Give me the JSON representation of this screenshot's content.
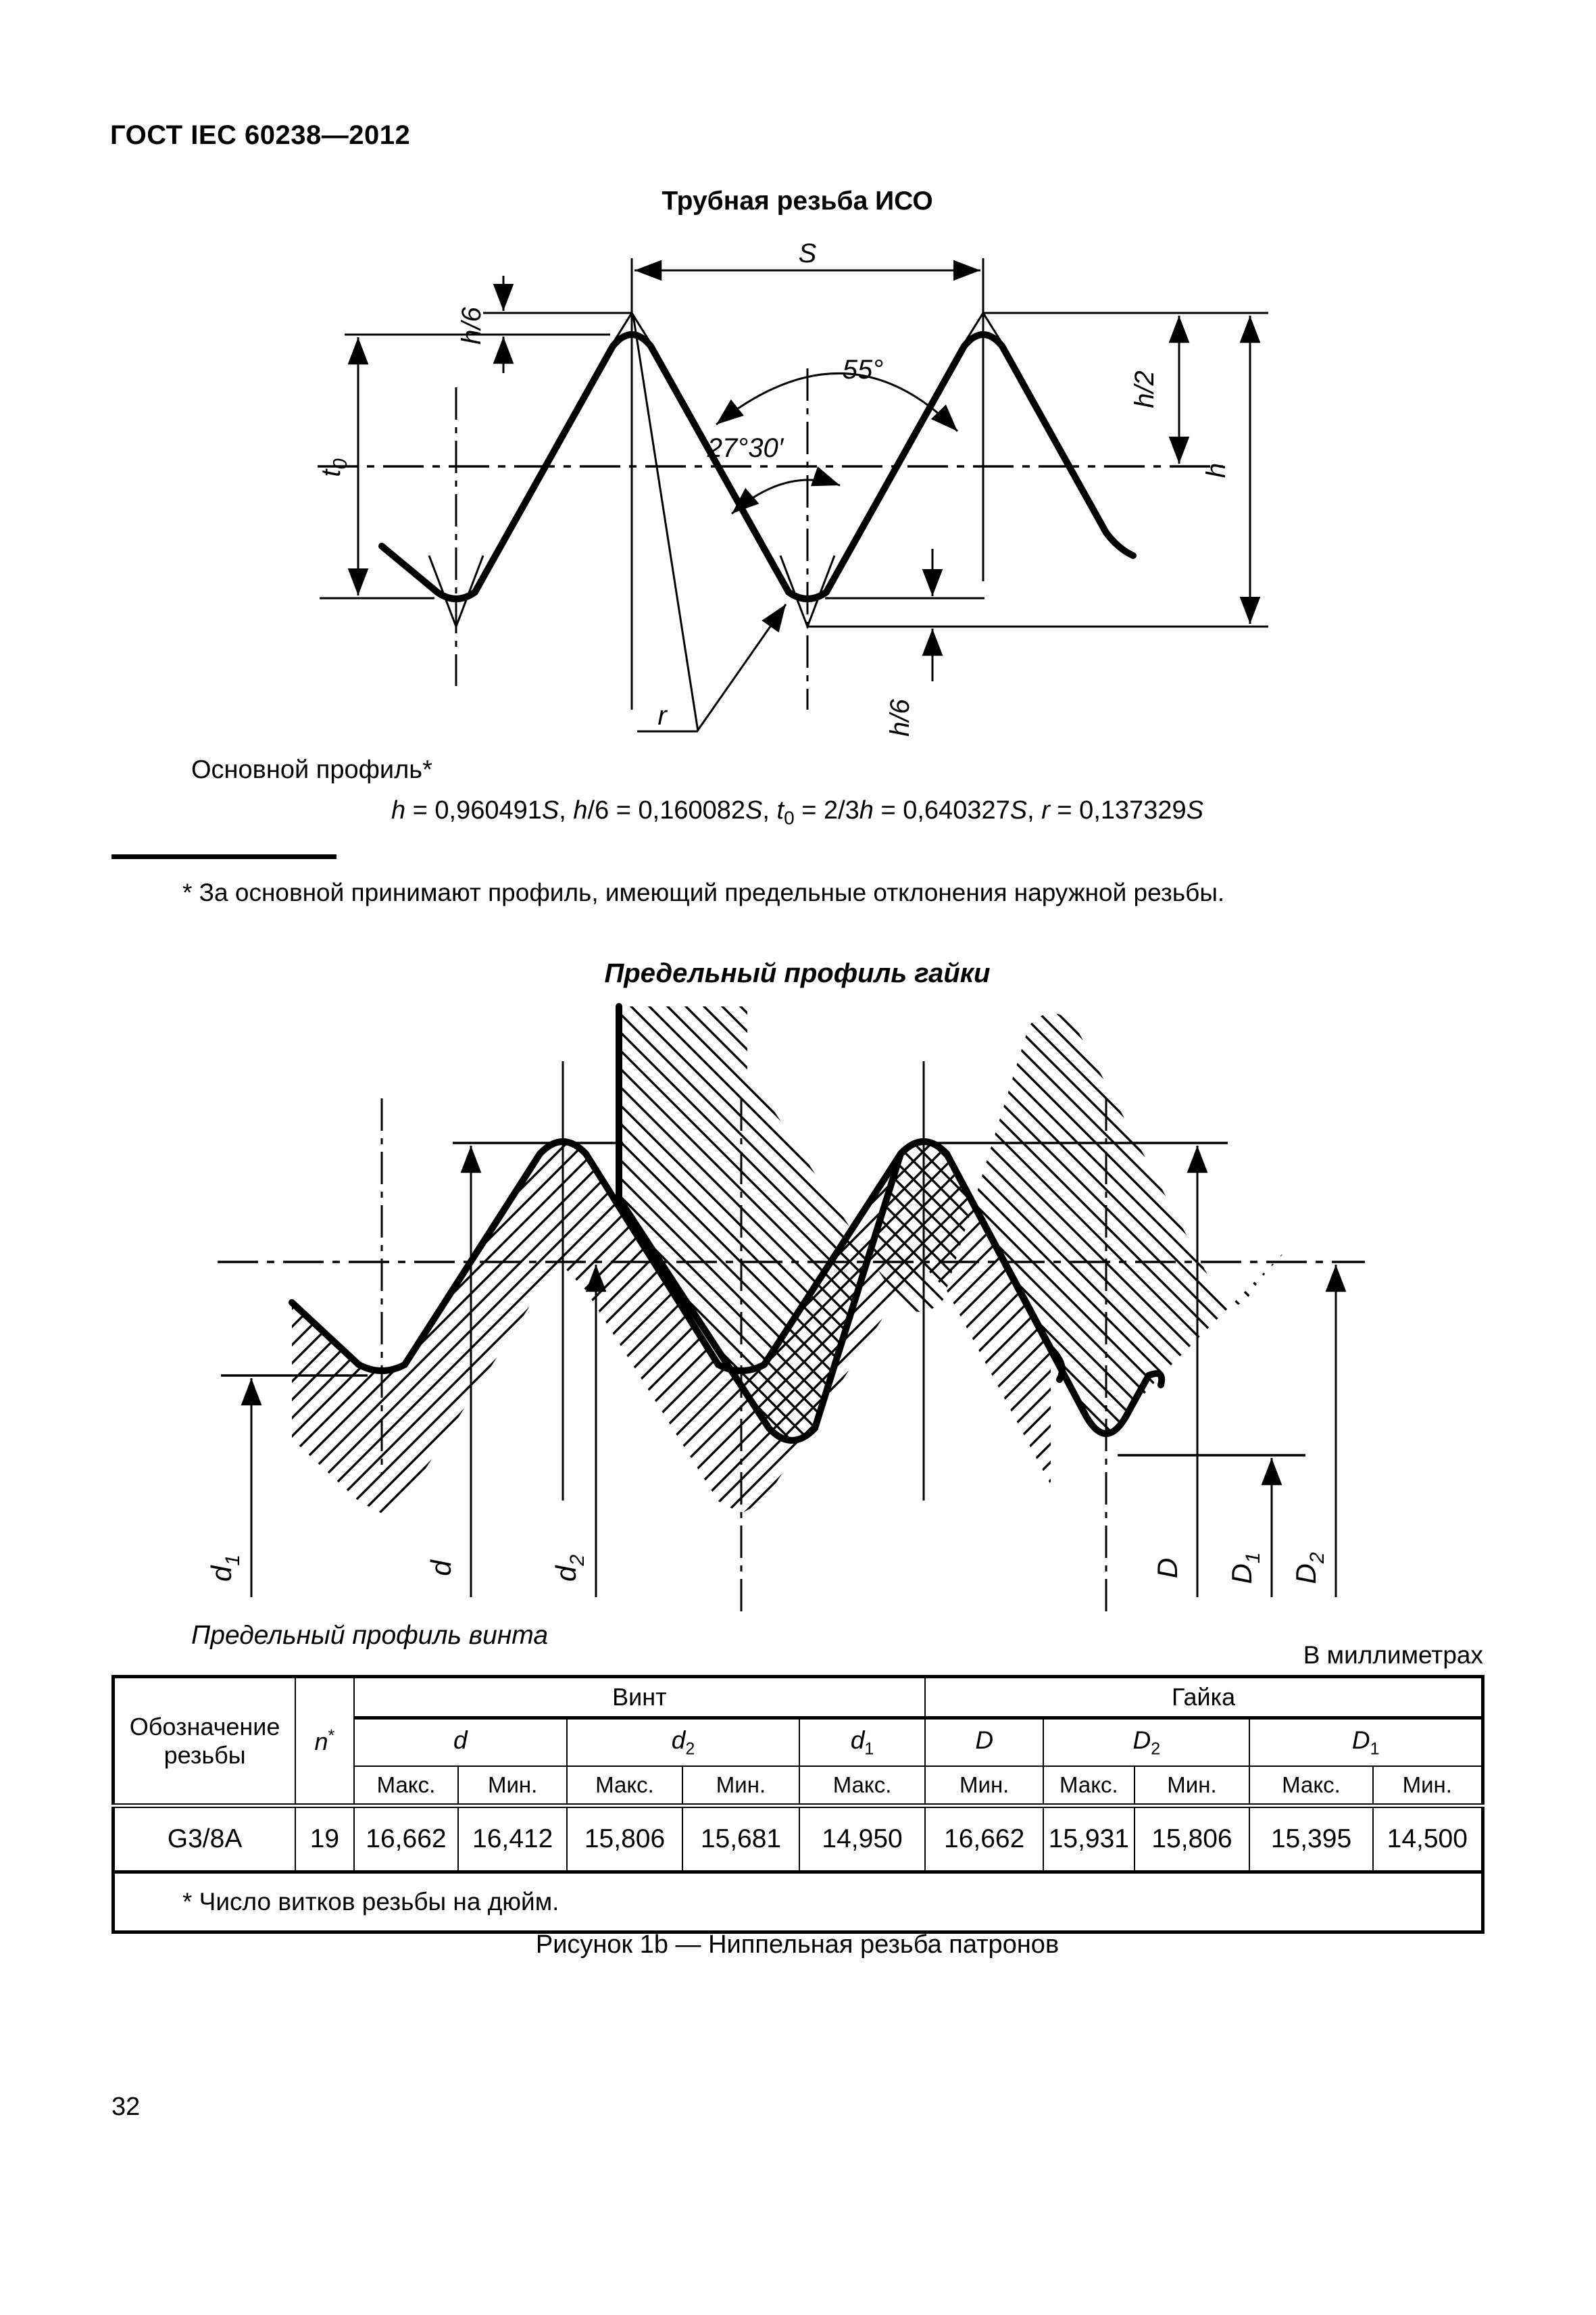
{
  "page": {
    "header": "ГОСТ IEC 60238—2012",
    "page_number": "32",
    "caption": "Рисунок 1b — Ниппельная резьба патронов"
  },
  "figure1": {
    "title": "Трубная резьба ИСО",
    "profile_label": "Основной профиль*",
    "formula_runs": [
      {
        "t": "h",
        "i": 1
      },
      {
        "t": " = 0,960491"
      },
      {
        "t": "S",
        "i": 1
      },
      {
        "t": ", "
      },
      {
        "t": "h",
        "i": 1
      },
      {
        "t": "/6 = 0,160082"
      },
      {
        "t": "S",
        "i": 1
      },
      {
        "t": ", "
      },
      {
        "t": "t",
        "i": 1
      },
      {
        "t": "0",
        "sub": 1
      },
      {
        "t": " = 2/3"
      },
      {
        "t": "h",
        "i": 1
      },
      {
        "t": " = 0,640327"
      },
      {
        "t": "S",
        "i": 1
      },
      {
        "t": ", "
      },
      {
        "t": "r",
        "i": 1
      },
      {
        "t": " = 0,137329"
      },
      {
        "t": "S",
        "i": 1
      }
    ],
    "footnote": "* За основной принимают профиль, имеющий предельные отклонения наружной резьбы.",
    "labels": {
      "s": "S",
      "angle_full": "55°",
      "angle_half": "27°30′",
      "h6": "h/6",
      "t0_base": "t",
      "t0_sub": "0",
      "h2": "h/2",
      "h": "h",
      "r": "r"
    }
  },
  "figure2": {
    "title_nut": "Предельный профиль гайки",
    "title_screw": "Предельный профиль винта",
    "labels": {
      "d_base": "d",
      "d1_sub": "1",
      "d2_sub": "2",
      "D_base": "D",
      "D1_sub": "1",
      "D2_sub": "2"
    }
  },
  "table": {
    "units_note": "В миллиметрах",
    "col_designation": "Обозначение резьбы",
    "col_n": {
      "base": "n",
      "mark": "*"
    },
    "groups": {
      "screw": "Винт",
      "nut": "Гайка"
    },
    "dims": [
      {
        "base": "d",
        "sub": ""
      },
      {
        "base": "d",
        "sub": "2"
      },
      {
        "base": "d",
        "sub": "1"
      },
      {
        "base": "D",
        "sub": ""
      },
      {
        "base": "D",
        "sub": "2"
      },
      {
        "base": "D",
        "sub": "1"
      }
    ],
    "subheads": [
      "Макс.",
      "Мин.",
      "Макс.",
      "Мин.",
      "Макс.",
      "Мин.",
      "Макс.",
      "Мин.",
      "Макс.",
      "Мин."
    ],
    "row": {
      "designation": "G3/8A",
      "n": "19",
      "values": [
        "16,662",
        "16,412",
        "15,806",
        "15,681",
        "14,950",
        "16,662",
        "15,931",
        "15,806",
        "15,395",
        "14,500"
      ]
    },
    "footnote": "* Число витков резьбы на дюйм."
  }
}
